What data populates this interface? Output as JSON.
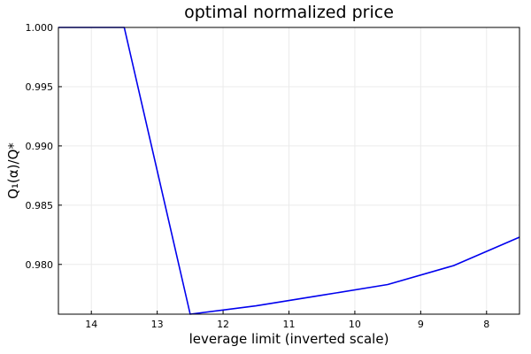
{
  "chart_data": {
    "type": "line",
    "title": "optimal normalized price",
    "xlabel": "leverage limit (inverted scale)",
    "ylabel": "Q₁(α)/Q*",
    "x_inverted": true,
    "xlim": [
      14.5,
      7.5
    ],
    "ylim": [
      0.9758,
      1.0
    ],
    "grid": true,
    "legend": "none",
    "x_ticks": [
      14,
      13,
      12,
      11,
      10,
      9,
      8
    ],
    "y_ticks": [
      1.0,
      0.995,
      0.99,
      0.985,
      0.98
    ],
    "y_tick_labels": [
      "1.000",
      "0.995",
      "0.990",
      "0.985",
      "0.980"
    ],
    "series": [
      {
        "color": "#0000ee",
        "x": [
          14.5,
          13.5,
          12.5,
          11.5,
          10.5,
          9.5,
          8.5,
          7.5
        ],
        "y": [
          1.0,
          1.0,
          0.9758,
          0.9765,
          0.9774,
          0.9783,
          0.9799,
          0.9823
        ]
      }
    ]
  }
}
